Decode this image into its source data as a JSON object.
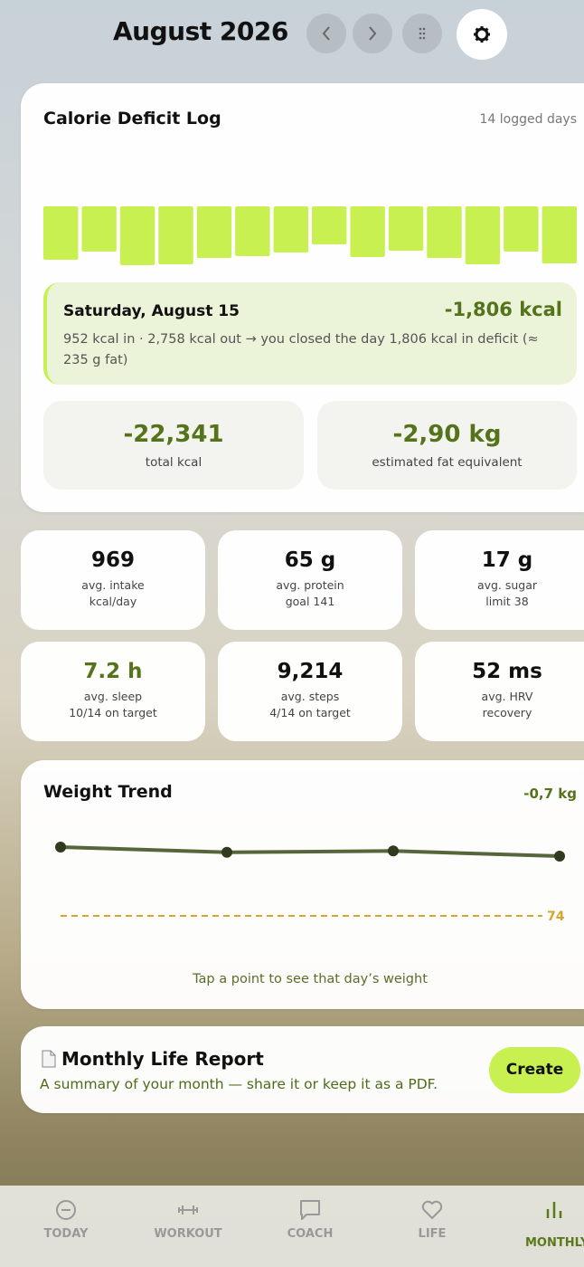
{
  "header": {
    "title": "August 2026"
  },
  "deficit_card": {
    "title": "Calorie Deficit Log",
    "logged_days": "14 logged days",
    "selected": {
      "day": "Saturday, August 15",
      "value": "-1,806 kcal",
      "detail": "952 kcal in · 2,758 kcal out → you closed the day 1,806 kcal in deficit (≈ 235 g fat)"
    },
    "stats": [
      {
        "value": "-22,341",
        "label": "total kcal"
      },
      {
        "value": "-2,90 kg",
        "label": "estimated fat equivalent"
      }
    ]
  },
  "tiles": [
    {
      "value": "969",
      "line1": "avg. intake",
      "line2": "kcal/day"
    },
    {
      "value": "65 g",
      "line1": "avg. protein",
      "line2": "goal 141"
    },
    {
      "value": "17 g",
      "line1": "avg. sugar",
      "line2": "limit 38"
    },
    {
      "value": "7.2 h",
      "line1": "avg. sleep",
      "line2": "10/14 on target"
    },
    {
      "value": "9,214",
      "line1": "avg. steps",
      "line2": "4/14 on target"
    },
    {
      "value": "52 ms",
      "line1": "avg. HRV",
      "line2": "recovery"
    }
  ],
  "chart_data": [
    {
      "type": "bar",
      "values": [
        -1686,
        -1429,
        -1857,
        -1828,
        -1629,
        -1571,
        -1457,
        -1200,
        -1600,
        -1400,
        -1629,
        -1828,
        -1429,
        -1800
      ],
      "color": "#c8f050"
    },
    {
      "type": "line",
      "title": "Weight Trend",
      "change": "-0,7 kg",
      "values": [
        79.3,
        78.9,
        79.0,
        78.6
      ],
      "color": "#55663a",
      "target": 74,
      "target_color": "#d4a72c",
      "caption": "Tap a point to see that day’s weight"
    }
  ],
  "report": {
    "title": "Monthly Life Report",
    "subtitle": "A summary of your month — share it or keep it as a PDF.",
    "button": "Create"
  },
  "nav": [
    {
      "label": "TODAY"
    },
    {
      "label": "WORKOUT"
    },
    {
      "label": "COACH"
    },
    {
      "label": "LIFE"
    },
    {
      "label": "MONTHLY"
    }
  ]
}
